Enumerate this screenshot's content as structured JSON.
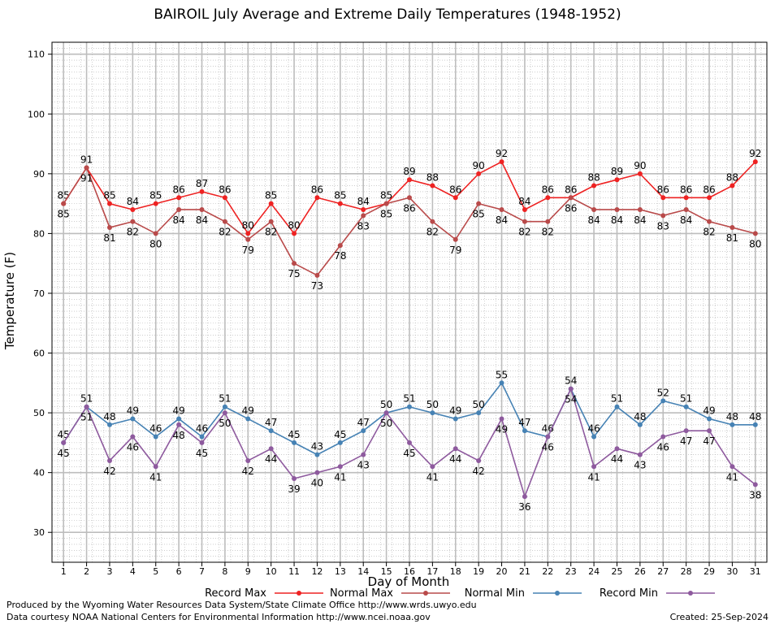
{
  "chart_data": {
    "type": "line",
    "title": "BAIROIL July Average and Extreme Daily Temperatures (1948-1952)",
    "xlabel": "Day of Month",
    "ylabel": "Temperature (F)",
    "ylim": [
      25,
      112
    ],
    "yticks": [
      30,
      40,
      50,
      60,
      70,
      80,
      90,
      100,
      110
    ],
    "x": [
      1,
      2,
      3,
      4,
      5,
      6,
      7,
      8,
      9,
      10,
      11,
      12,
      13,
      14,
      15,
      16,
      17,
      18,
      19,
      20,
      21,
      22,
      23,
      24,
      25,
      26,
      27,
      28,
      29,
      30,
      31
    ],
    "grid": true,
    "legend_position": "bottom",
    "series": [
      {
        "name": "Record Max",
        "color": "#ee2222",
        "values": [
          85,
          91,
          85,
          84,
          85,
          86,
          87,
          86,
          80,
          85,
          80,
          86,
          85,
          84,
          85,
          89,
          88,
          86,
          90,
          92,
          84,
          86,
          86,
          88,
          89,
          90,
          86,
          86,
          86,
          88,
          92
        ]
      },
      {
        "name": "Normal Max",
        "color": "#b94a4a",
        "values": [
          85,
          91,
          81,
          82,
          80,
          84,
          84,
          82,
          79,
          82,
          75,
          73,
          78,
          83,
          85,
          86,
          82,
          79,
          85,
          84,
          82,
          82,
          86,
          84,
          84,
          84,
          83,
          84,
          82,
          81,
          80
        ]
      },
      {
        "name": "Normal Min",
        "color": "#4682b4",
        "values": [
          45,
          51,
          48,
          49,
          46,
          49,
          46,
          51,
          49,
          47,
          45,
          43,
          45,
          47,
          50,
          51,
          50,
          49,
          50,
          55,
          47,
          46,
          54,
          46,
          51,
          48,
          52,
          51,
          49,
          48,
          48
        ]
      },
      {
        "name": "Record Min",
        "color": "#8e5a9e",
        "values": [
          45,
          51,
          42,
          46,
          41,
          48,
          45,
          50,
          42,
          44,
          39,
          40,
          41,
          43,
          50,
          45,
          41,
          44,
          42,
          49,
          36,
          46,
          54,
          41,
          44,
          43,
          46,
          47,
          47,
          41,
          38
        ]
      }
    ]
  },
  "footer": {
    "credit1": "Produced by the Wyoming Water Resources Data System/State Climate Office http://www.wrds.uwyo.edu",
    "credit2": "Data courtesy NOAA National Centers for Environmental Information http://www.ncei.noaa.gov",
    "created": "Created:  25-Sep-2024"
  }
}
